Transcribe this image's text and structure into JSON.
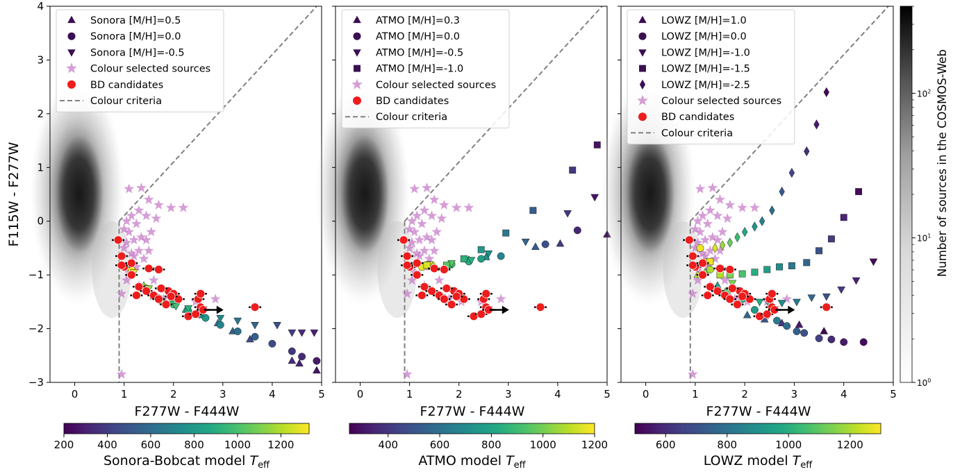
{
  "figure": {
    "x_label": "F277W - F444W",
    "y_label": "F115W - F277W",
    "density_colorbar_label": "Number of sources in the COSMOS-Web",
    "density_colorbar_ticks": [
      {
        "value": 1,
        "label": "10",
        "exp": "0"
      },
      {
        "value": 10,
        "label": "10",
        "exp": "1"
      },
      {
        "value": 100,
        "label": "10",
        "exp": "2"
      }
    ]
  },
  "chart_data": [
    {
      "type": "scatter",
      "panel": "Sonora",
      "xlim": [
        -0.5,
        5
      ],
      "ylim": [
        -3,
        4
      ],
      "x_ticks": [
        "0",
        "1",
        "2",
        "3",
        "4",
        "5"
      ],
      "y_ticks": [
        "−3",
        "−2",
        "−1",
        "0",
        "1",
        "2",
        "3",
        "4"
      ],
      "legend_placement": "upper-left",
      "colorbar": {
        "label_text": "Sonora-Bobcat model ",
        "label_sym": "T",
        "label_sub": "eff",
        "vmin": 200,
        "vmax": 1330,
        "ticks": [
          200,
          400,
          600,
          800,
          1000,
          1200
        ]
      },
      "legend": [
        {
          "marker": "triangle-up",
          "label": "Sonora [M/H]=0.5"
        },
        {
          "marker": "circle",
          "label": "Sonora [M/H]=0.0"
        },
        {
          "marker": "triangle-down",
          "label": "Sonora [M/H]=-0.5"
        },
        {
          "marker": "star",
          "label": "Colour selected sources"
        },
        {
          "marker": "red-circle",
          "label": "BD candidates"
        },
        {
          "marker": "dashed-line",
          "label": "Colour criteria"
        }
      ],
      "model_series": [
        {
          "marker": "triangle-up",
          "points": [
            [
              4.9,
              -2.78
            ],
            [
              4.55,
              -2.65
            ],
            [
              4.4,
              -2.6
            ],
            [
              3.55,
              -2.2
            ],
            [
              3.2,
              -2.05
            ],
            [
              2.9,
              -1.9
            ],
            [
              2.55,
              -1.75
            ],
            [
              2.25,
              -1.65
            ],
            [
              1.95,
              -1.5
            ],
            [
              1.75,
              -1.45
            ],
            [
              1.6,
              -1.4
            ],
            [
              1.4,
              -1.2
            ],
            [
              1.15,
              -0.95
            ]
          ],
          "teff": [
            260,
            300,
            350,
            450,
            550,
            650,
            750,
            850,
            950,
            1000,
            1050,
            1150,
            1300
          ]
        },
        {
          "marker": "circle",
          "points": [
            [
              4.9,
              -2.6
            ],
            [
              4.6,
              -2.52
            ],
            [
              4.4,
              -2.42
            ],
            [
              4.0,
              -2.28
            ],
            [
              3.65,
              -2.15
            ],
            [
              3.3,
              -2.05
            ],
            [
              2.95,
              -1.93
            ],
            [
              2.65,
              -1.8
            ],
            [
              2.3,
              -1.67
            ],
            [
              2.0,
              -1.55
            ],
            [
              1.75,
              -1.48
            ],
            [
              1.45,
              -1.25
            ],
            [
              1.15,
              -0.9
            ]
          ],
          "teff": [
            280,
            330,
            380,
            460,
            540,
            620,
            700,
            800,
            900,
            980,
            1030,
            1150,
            1300
          ]
        },
        {
          "marker": "triangle-down",
          "points": [
            [
              4.85,
              -2.07
            ],
            [
              4.6,
              -2.07
            ],
            [
              4.4,
              -2.07
            ],
            [
              4.1,
              -1.93
            ],
            [
              3.65,
              -1.93
            ],
            [
              3.3,
              -1.85
            ],
            [
              2.95,
              -1.8
            ],
            [
              2.6,
              -1.7
            ],
            [
              2.3,
              -1.62
            ],
            [
              2.05,
              -1.58
            ],
            [
              1.8,
              -1.52
            ],
            [
              1.5,
              -1.25
            ],
            [
              1.2,
              -0.95
            ]
          ],
          "teff": [
            300,
            340,
            400,
            470,
            560,
            640,
            720,
            820,
            920,
            980,
            1030,
            1140,
            1280
          ]
        }
      ]
    },
    {
      "type": "scatter",
      "panel": "ATMO",
      "xlim": [
        -0.5,
        5
      ],
      "ylim": [
        -3,
        4
      ],
      "x_ticks": [
        "0",
        "1",
        "2",
        "3",
        "4",
        "5"
      ],
      "legend_placement": "upper-left",
      "colorbar": {
        "label_text": "ATMO model ",
        "label_sym": "T",
        "label_sub": "eff",
        "vmin": 250,
        "vmax": 1200,
        "ticks": [
          400,
          600,
          800,
          1000,
          1200
        ]
      },
      "legend": [
        {
          "marker": "triangle-up",
          "label": "ATMO [M/H]=0.3"
        },
        {
          "marker": "circle",
          "label": "ATMO [M/H]=0.0"
        },
        {
          "marker": "triangle-down",
          "label": "ATMO [M/H]=-0.5"
        },
        {
          "marker": "square",
          "label": "ATMO [M/H]=-1.0"
        },
        {
          "marker": "star",
          "label": "Colour selected sources"
        },
        {
          "marker": "red-circle",
          "label": "BD candidates"
        },
        {
          "marker": "dashed-line",
          "label": "Colour criteria"
        }
      ],
      "model_series": [
        {
          "marker": "triangle-up",
          "points": [
            [
              5.0,
              -0.25
            ],
            [
              4.05,
              -0.42
            ],
            [
              3.55,
              -0.48
            ],
            [
              2.55,
              -0.67
            ],
            [
              2.2,
              -0.72
            ],
            [
              1.8,
              -0.82
            ],
            [
              1.4,
              -0.85
            ]
          ],
          "teff": [
            300,
            420,
            520,
            720,
            820,
            950,
            1150
          ]
        },
        {
          "marker": "circle",
          "points": [
            [
              4.4,
              -0.17
            ],
            [
              3.75,
              -0.43
            ],
            [
              2.85,
              -0.65
            ],
            [
              2.45,
              -0.7
            ],
            [
              2.2,
              -0.75
            ],
            [
              1.85,
              -0.8
            ],
            [
              1.45,
              -0.82
            ],
            [
              1.25,
              -0.85
            ]
          ],
          "teff": [
            350,
            480,
            680,
            780,
            840,
            920,
            1100,
            1180
          ]
        },
        {
          "marker": "triangle-down",
          "points": [
            [
              4.75,
              0.45
            ],
            [
              4.2,
              0.15
            ],
            [
              3.35,
              -0.38
            ],
            [
              2.6,
              -0.6
            ],
            [
              2.25,
              -0.72
            ],
            [
              1.85,
              -0.78
            ],
            [
              1.4,
              -0.8
            ]
          ],
          "teff": [
            300,
            400,
            560,
            720,
            840,
            950,
            1150
          ]
        },
        {
          "marker": "square",
          "points": [
            [
              4.8,
              1.42
            ],
            [
              4.3,
              0.95
            ],
            [
              3.5,
              0.2
            ],
            [
              2.95,
              -0.22
            ],
            [
              2.45,
              -0.53
            ],
            [
              2.1,
              -0.7
            ],
            [
              1.75,
              -0.82
            ],
            [
              1.35,
              -0.82
            ]
          ],
          "teff": [
            300,
            400,
            520,
            640,
            760,
            850,
            950,
            1150
          ]
        }
      ]
    },
    {
      "type": "scatter",
      "panel": "LOWZ",
      "xlim": [
        -0.5,
        5
      ],
      "ylim": [
        -3,
        4
      ],
      "x_ticks": [
        "0",
        "1",
        "2",
        "3",
        "4",
        "5"
      ],
      "legend_placement": "upper-left",
      "colorbar": {
        "label_text": "LOWZ model ",
        "label_sym": "T",
        "label_sub": "eff",
        "vmin": 500,
        "vmax": 1300,
        "ticks": [
          600,
          800,
          1000,
          1200
        ]
      },
      "legend": [
        {
          "marker": "triangle-up",
          "label": "LOWZ [M/H]=1.0"
        },
        {
          "marker": "circle",
          "label": "LOWZ [M/H]=0.0"
        },
        {
          "marker": "triangle-down",
          "label": "LOWZ [M/H]=-1.0"
        },
        {
          "marker": "square",
          "label": "LOWZ [M/H]=-1.5"
        },
        {
          "marker": "diamond",
          "label": "LOWZ [M/H]=-2.5"
        },
        {
          "marker": "star",
          "label": "Colour selected sources"
        },
        {
          "marker": "red-circle",
          "label": "BD candidates"
        },
        {
          "marker": "dashed-line",
          "label": "Colour criteria"
        }
      ],
      "model_series": [
        {
          "marker": "triangle-up",
          "points": [
            [
              3.6,
              -2.05
            ],
            [
              3.1,
              -1.93
            ],
            [
              2.75,
              -1.9
            ],
            [
              2.4,
              -1.83
            ],
            [
              2.05,
              -1.75
            ],
            [
              1.7,
              -1.45
            ],
            [
              1.45,
              -1.2
            ],
            [
              1.2,
              -0.95
            ],
            [
              1.05,
              -1.0
            ]
          ],
          "teff": [
            500,
            560,
            630,
            700,
            770,
            870,
            970,
            1130,
            1230
          ]
        },
        {
          "marker": "circle",
          "points": [
            [
              4.4,
              -2.25
            ],
            [
              4.0,
              -2.25
            ],
            [
              3.75,
              -2.2
            ],
            [
              3.5,
              -2.18
            ],
            [
              3.2,
              -2.08
            ],
            [
              3.05,
              -2.05
            ],
            [
              2.85,
              -1.95
            ],
            [
              2.65,
              -1.85
            ],
            [
              2.45,
              -1.75
            ],
            [
              2.2,
              -1.65
            ],
            [
              1.95,
              -1.45
            ],
            [
              1.65,
              -1.3
            ],
            [
              1.3,
              -0.9
            ],
            [
              1.1,
              -0.5
            ]
          ],
          "teff": [
            520,
            560,
            600,
            650,
            700,
            740,
            780,
            830,
            880,
            930,
            990,
            1080,
            1200,
            1280
          ]
        },
        {
          "marker": "triangle-down",
          "points": [
            [
              4.6,
              -0.75
            ],
            [
              4.25,
              -1.1
            ],
            [
              3.95,
              -1.27
            ],
            [
              3.65,
              -1.4
            ],
            [
              3.35,
              -1.42
            ],
            [
              3.05,
              -1.5
            ],
            [
              2.75,
              -1.52
            ],
            [
              2.5,
              -1.55
            ],
            [
              2.3,
              -1.5
            ],
            [
              2.0,
              -1.35
            ],
            [
              1.75,
              -1.15
            ],
            [
              1.5,
              -0.88
            ],
            [
              1.25,
              -0.75
            ]
          ],
          "teff": [
            520,
            580,
            640,
            700,
            760,
            820,
            880,
            940,
            990,
            1060,
            1140,
            1220,
            1280
          ]
        },
        {
          "marker": "square",
          "points": [
            [
              4.3,
              0.55
            ],
            [
              4.0,
              0.07
            ],
            [
              3.75,
              -0.33
            ],
            [
              3.5,
              -0.55
            ],
            [
              3.25,
              -0.77
            ],
            [
              2.95,
              -0.83
            ],
            [
              2.7,
              -0.85
            ],
            [
              2.45,
              -0.9
            ],
            [
              2.2,
              -0.95
            ],
            [
              1.95,
              -0.98
            ],
            [
              1.7,
              -1.0
            ],
            [
              1.5,
              -1.0
            ],
            [
              1.3,
              -0.75
            ]
          ],
          "teff": [
            520,
            580,
            640,
            700,
            760,
            820,
            880,
            940,
            1000,
            1070,
            1140,
            1210,
            1280
          ]
        },
        {
          "marker": "diamond",
          "points": [
            [
              3.65,
              2.4
            ],
            [
              3.45,
              1.8
            ],
            [
              3.25,
              1.3
            ],
            [
              2.95,
              0.9
            ],
            [
              2.75,
              0.55
            ],
            [
              2.55,
              0.2
            ],
            [
              2.35,
              0.0
            ],
            [
              2.2,
              -0.1
            ],
            [
              2.0,
              -0.2
            ],
            [
              1.85,
              -0.3
            ],
            [
              1.7,
              -0.4
            ],
            [
              1.55,
              -0.45
            ],
            [
              1.4,
              -0.5
            ]
          ],
          "teff": [
            520,
            560,
            610,
            670,
            730,
            790,
            850,
            910,
            970,
            1040,
            1110,
            1180,
            1260
          ]
        }
      ]
    }
  ],
  "shared_data": {
    "bd_candidates": [
      [
        0.88,
        -0.35
      ],
      [
        0.95,
        -0.65
      ],
      [
        1.0,
        -0.85
      ],
      [
        0.95,
        -0.82
      ],
      [
        1.15,
        -0.78
      ],
      [
        1.15,
        -1.0
      ],
      [
        1.5,
        -0.88
      ],
      [
        1.7,
        -0.9
      ],
      [
        1.3,
        -1.22
      ],
      [
        1.25,
        -1.38
      ],
      [
        1.45,
        -1.3
      ],
      [
        1.6,
        -1.38
      ],
      [
        1.7,
        -1.45
      ],
      [
        1.85,
        -1.55
      ],
      [
        1.9,
        -1.3
      ],
      [
        2.0,
        -1.35
      ],
      [
        1.75,
        -1.25
      ],
      [
        2.1,
        -1.45
      ],
      [
        2.3,
        -1.77
      ],
      [
        2.45,
        -1.73
      ],
      [
        2.55,
        -1.6
      ],
      [
        2.6,
        -1.65
      ],
      [
        2.5,
        -1.45
      ],
      [
        2.55,
        -1.35
      ],
      [
        3.65,
        -1.6
      ],
      [
        1.95,
        -1.4
      ]
    ],
    "colour_selected": [
      [
        1.1,
        0.6
      ],
      [
        1.35,
        0.62
      ],
      [
        1.5,
        0.4
      ],
      [
        1.7,
        0.3
      ],
      [
        1.95,
        0.25
      ],
      [
        2.2,
        0.25
      ],
      [
        1.3,
        0.2
      ],
      [
        1.45,
        0.1
      ],
      [
        1.65,
        0.05
      ],
      [
        1.15,
        0.1
      ],
      [
        1.05,
        0.0
      ],
      [
        1.25,
        -0.05
      ],
      [
        1.55,
        -0.2
      ],
      [
        1.35,
        -0.3
      ],
      [
        1.2,
        -0.35
      ],
      [
        1.1,
        -0.2
      ],
      [
        1.0,
        -0.15
      ],
      [
        1.3,
        -0.55
      ],
      [
        1.5,
        -0.55
      ],
      [
        1.4,
        -0.7
      ],
      [
        1.25,
        -0.85
      ],
      [
        1.1,
        -0.95
      ],
      [
        1.05,
        -1.1
      ],
      [
        1.3,
        -1.2
      ],
      [
        1.6,
        -1.1
      ],
      [
        1.8,
        -1.45
      ],
      [
        2.05,
        -1.5
      ],
      [
        2.45,
        -1.5
      ],
      [
        2.85,
        -1.45
      ],
      [
        0.95,
        -1.35
      ],
      [
        0.95,
        -2.85
      ],
      [
        1.0,
        -0.5
      ],
      [
        1.15,
        -0.6
      ],
      [
        1.05,
        -0.4
      ],
      [
        1.2,
        -0.65
      ],
      [
        1.45,
        -0.35
      ]
    ]
  }
}
